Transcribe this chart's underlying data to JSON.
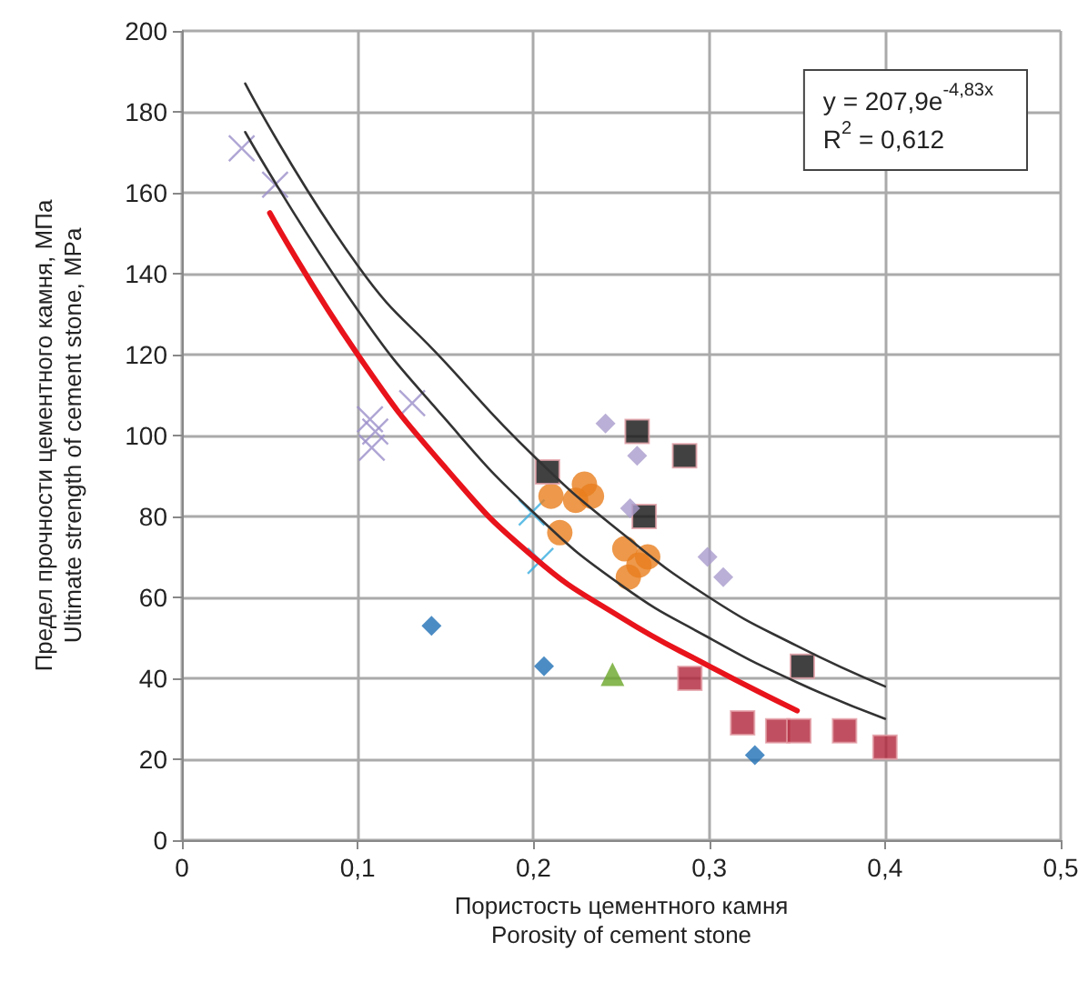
{
  "chart_data": {
    "type": "scatter",
    "xlabel": "Пористость цементного камня\nPorosity of cement stone",
    "ylabel": "Предел прочности цементного камня, МПа\nUltimate strength of cement stone, MPa",
    "xlim": [
      0,
      0.5
    ],
    "xticks": [
      {
        "value": 0,
        "label": "0"
      },
      {
        "value": 0.1,
        "label": "0,1"
      },
      {
        "value": 0.2,
        "label": "0,2"
      },
      {
        "value": 0.3,
        "label": "0,3"
      },
      {
        "value": 0.4,
        "label": "0,4"
      },
      {
        "value": 0.5,
        "label": "0,5"
      }
    ],
    "ylim": [
      0,
      200
    ],
    "yticks": [
      0,
      20,
      40,
      60,
      80,
      100,
      120,
      140,
      160,
      180,
      200
    ],
    "grid": true,
    "annotations": [
      "y = 207,9e$^{-4,83x}$",
      "R$^{2}$ = 0,612"
    ],
    "series": [
      {
        "marker": "cross",
        "color": "#9b8fc9",
        "x": [
          0.034,
          0.053,
          0.107,
          0.11,
          0.108,
          0.131
        ],
        "values": [
          171,
          162,
          104,
          101,
          97,
          108
        ]
      },
      {
        "marker": "cross",
        "color": "#3aaee0",
        "x": [
          0.199,
          0.204
        ],
        "values": [
          81,
          69
        ]
      },
      {
        "marker": "circle",
        "color": "#e87e1e",
        "x": [
          0.21,
          0.229,
          0.224,
          0.233,
          0.215,
          0.252,
          0.265,
          0.254,
          0.26
        ],
        "values": [
          85,
          88,
          84,
          85,
          76,
          72,
          70,
          65,
          68
        ]
      },
      {
        "marker": "square",
        "color": "#111111",
        "x": [
          0.208,
          0.259,
          0.286,
          0.263,
          0.353
        ],
        "values": [
          91,
          101,
          95,
          80,
          43
        ]
      },
      {
        "marker": "diamond",
        "color": "#a99bcc",
        "x": [
          0.241,
          0.259,
          0.255,
          0.299,
          0.308
        ],
        "values": [
          103,
          95,
          82,
          70,
          65
        ]
      },
      {
        "marker": "diamond",
        "color": "#1f6fb5",
        "x": [
          0.142,
          0.206,
          0.326
        ],
        "values": [
          53,
          43,
          21
        ]
      },
      {
        "marker": "triangle",
        "color": "#6aa628",
        "x": [
          0.245
        ],
        "values": [
          41
        ]
      },
      {
        "marker": "square",
        "color": "#b0243a",
        "x": [
          0.289,
          0.319,
          0.339,
          0.351,
          0.377,
          0.4
        ],
        "values": [
          40,
          29,
          27,
          27,
          27,
          23
        ]
      },
      {
        "type": "line",
        "marker": "none",
        "color": "#333333",
        "x": [
          0.036,
          0.1,
          0.15,
          0.2,
          0.25,
          0.3,
          0.35,
          0.4
        ],
        "values": [
          187,
          142,
          118,
          95,
          76,
          60,
          48,
          38
        ]
      },
      {
        "type": "line",
        "marker": "none",
        "color": "#333333",
        "x": [
          0.036,
          0.1,
          0.15,
          0.2,
          0.25,
          0.3,
          0.35,
          0.4
        ],
        "values": [
          175,
          131,
          104,
          81,
          63,
          50,
          39,
          30
        ]
      },
      {
        "type": "line",
        "marker": "none",
        "color": "#e8131b",
        "x": [
          0.05,
          0.1,
          0.15,
          0.2,
          0.25,
          0.3,
          0.35
        ],
        "values": [
          155,
          120,
          92,
          70,
          55,
          43,
          32
        ]
      }
    ]
  }
}
